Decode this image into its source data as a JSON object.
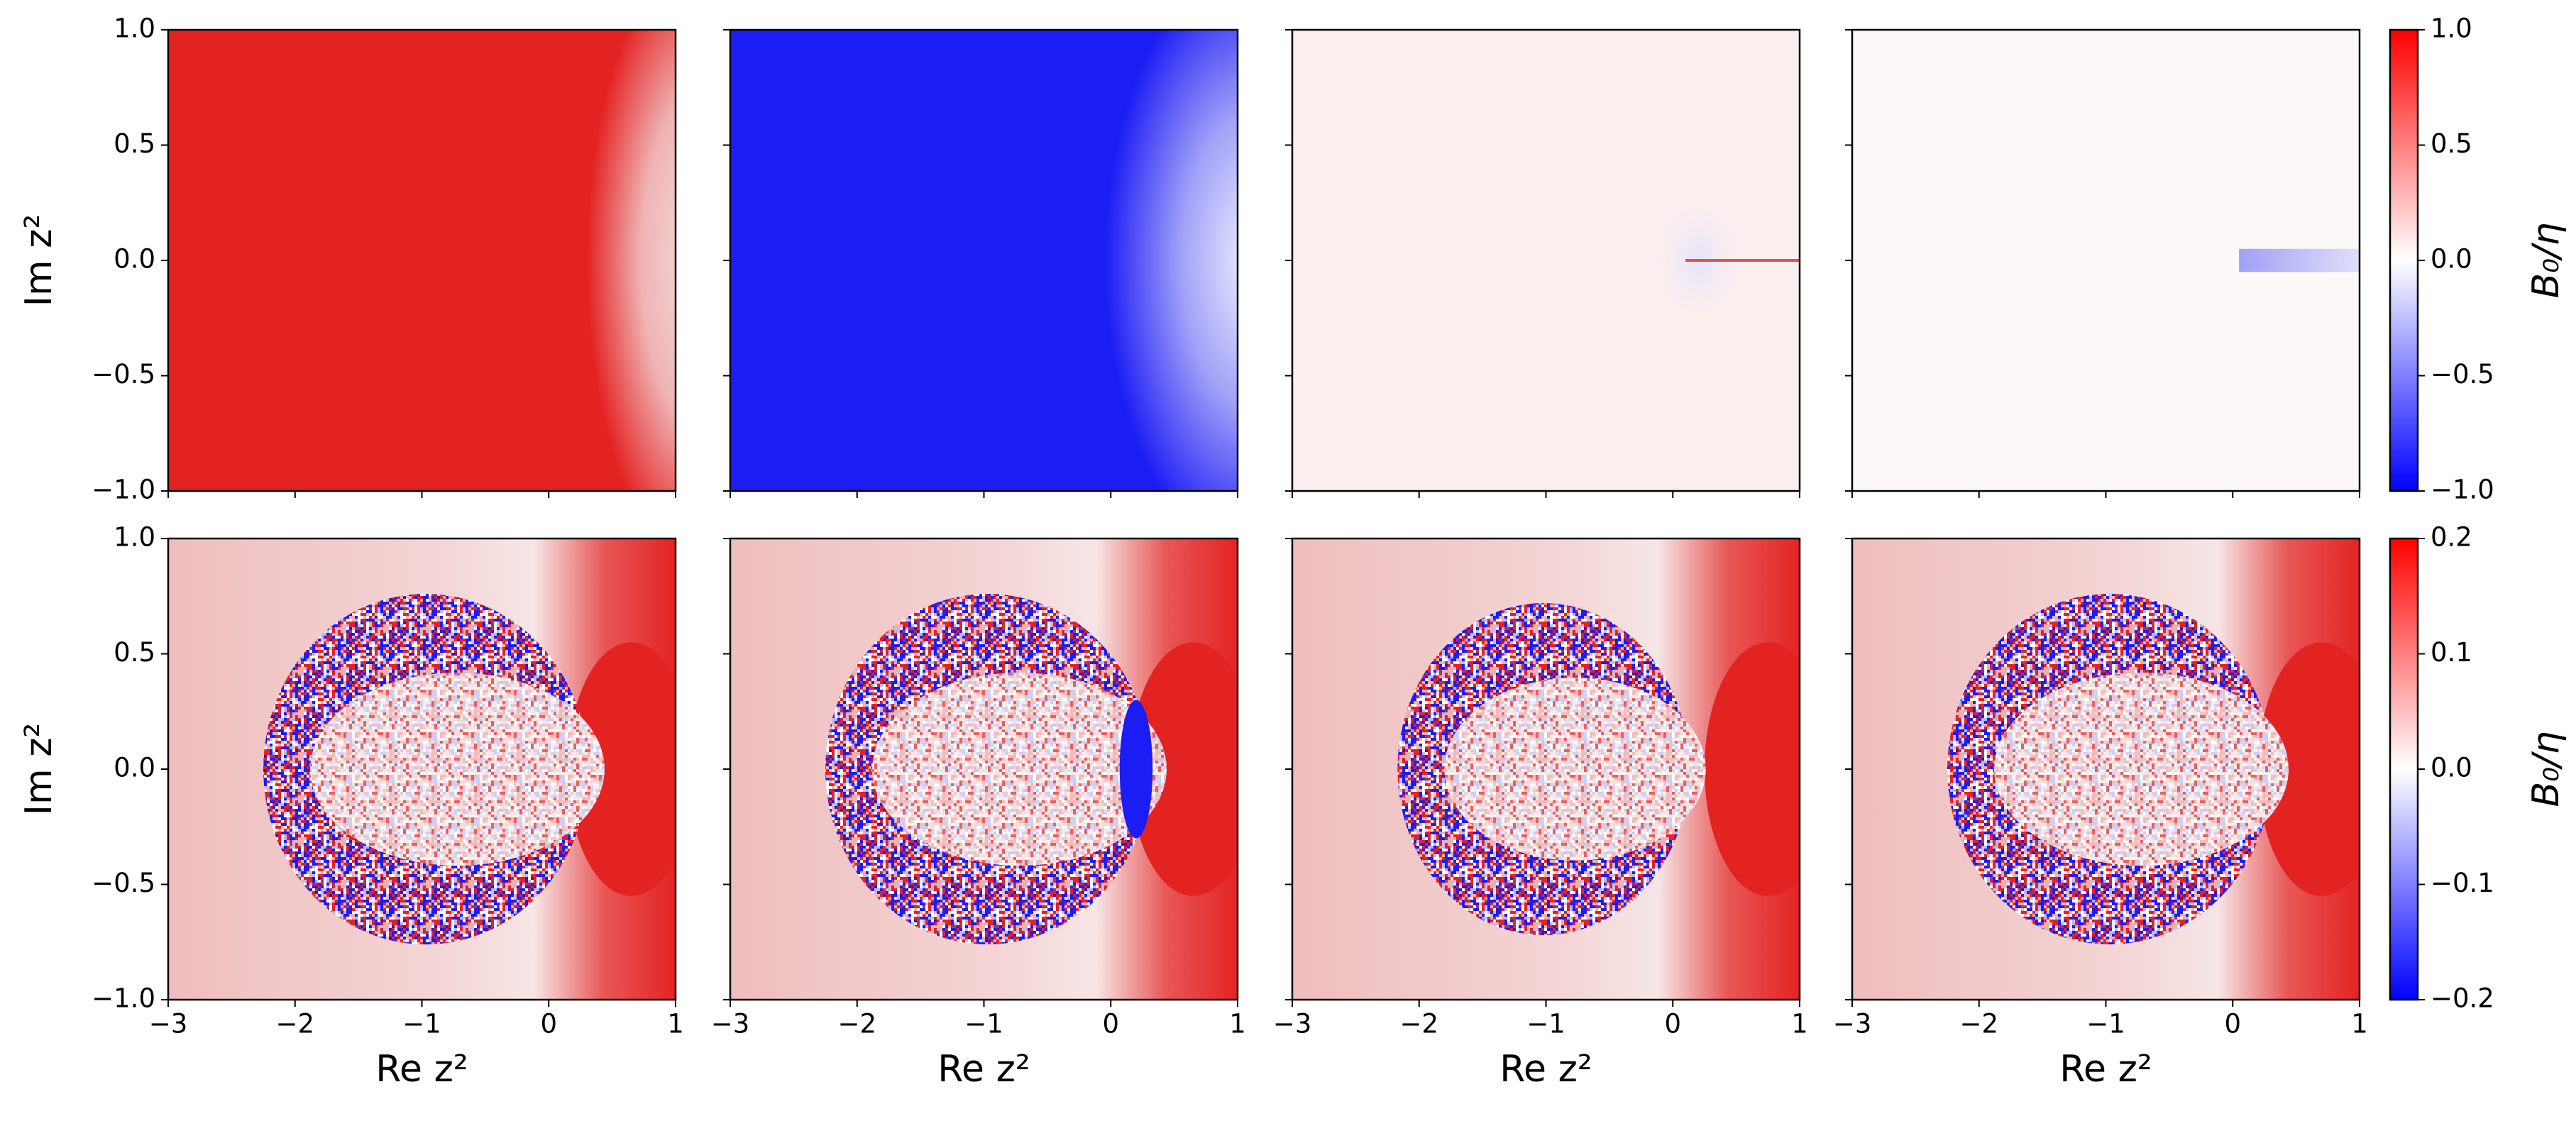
{
  "chart_data": [
    {
      "type": "heatmap",
      "ylabel": "Im z²",
      "xlim": [
        -3,
        1
      ],
      "ylim": [
        -1,
        1
      ],
      "xticks": [
        -3,
        -2,
        -1,
        0,
        1
      ],
      "yticks": [
        {
          "value": -1,
          "label": "−1.0"
        },
        {
          "value": -0.5,
          "label": "−0.5"
        },
        {
          "value": 0,
          "label": "0.0"
        },
        {
          "value": 0.5,
          "label": "0.5"
        },
        {
          "value": 1,
          "label": "1.0"
        }
      ],
      "colorbar": {
        "label": "B₀/η",
        "lim": [
          -1,
          1
        ],
        "ticks": [
          {
            "value": -1,
            "label": "−1.0"
          },
          {
            "value": -0.5,
            "label": "−0.5"
          },
          {
            "value": 0,
            "label": "0.0"
          },
          {
            "value": 0.5,
            "label": "0.5"
          },
          {
            "value": 1,
            "label": "1.0"
          }
        ],
        "colors": [
          "#0000ff",
          "#ffffff",
          "#ff0000"
        ]
      }
    },
    {
      "type": "heatmap",
      "xlabel": "Re z²",
      "ylabel": "Im z²",
      "xlim": [
        -3,
        1
      ],
      "ylim": [
        -1,
        1
      ],
      "xticks": [
        {
          "value": -3,
          "label": "−3"
        },
        {
          "value": -2,
          "label": "−2"
        },
        {
          "value": -1,
          "label": "−1"
        },
        0,
        1
      ],
      "yticks": [
        {
          "value": -1,
          "label": "−1.0"
        },
        {
          "value": -0.5,
          "label": "−0.5"
        },
        {
          "value": 0,
          "label": "0.0"
        },
        {
          "value": 0.5,
          "label": "0.5"
        },
        {
          "value": 1,
          "label": "1.0"
        }
      ],
      "colorbar": {
        "label": "B₀/η",
        "lim": [
          -0.2,
          0.2
        ],
        "ticks": [
          {
            "value": -0.2,
            "label": "−0.2"
          },
          {
            "value": -0.1,
            "label": "−0.1"
          },
          {
            "value": 0,
            "label": "0.0"
          },
          0.1,
          0.2
        ],
        "colors": [
          "#0000ff",
          "#ffffff",
          "#ff0000"
        ]
      }
    }
  ]
}
